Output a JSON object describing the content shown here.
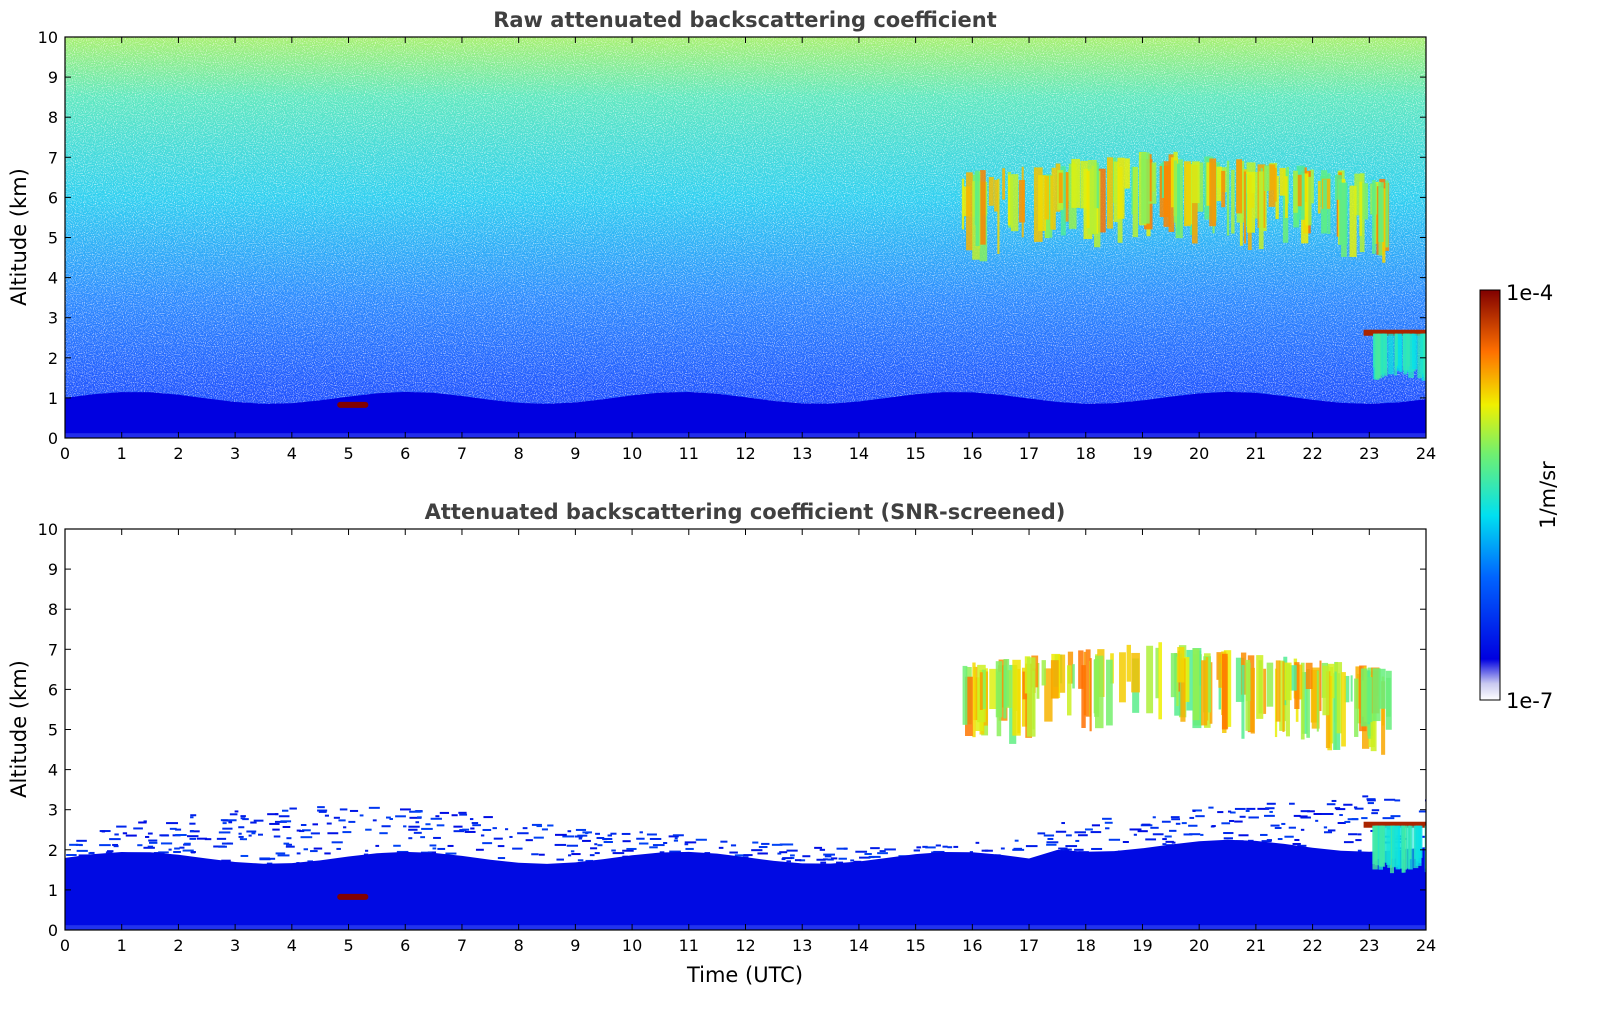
{
  "chart_data": [
    {
      "type": "heatmap",
      "title": "Raw attenuated backscattering coefficient",
      "xlabel": "",
      "ylabel": "Altitude (km)",
      "xlim": [
        0,
        24
      ],
      "ylim": [
        0,
        10
      ],
      "xticks": [
        "0",
        "1",
        "2",
        "3",
        "4",
        "5",
        "6",
        "7",
        "8",
        "9",
        "10",
        "11",
        "12",
        "13",
        "14",
        "15",
        "16",
        "17",
        "18",
        "19",
        "20",
        "21",
        "22",
        "23",
        "24"
      ],
      "yticks": [
        "0",
        "1",
        "2",
        "3",
        "4",
        "5",
        "6",
        "7",
        "8",
        "9",
        "10"
      ],
      "grid": false,
      "features": [
        {
          "kind": "boundary-layer",
          "x": [
            0,
            24
          ],
          "y": [
            0,
            1.0
          ],
          "level": 0.1
        },
        {
          "kind": "aerosol-layer",
          "x": [
            4.8,
            5.35
          ],
          "y": [
            0.75,
            0.9
          ],
          "level": 1.0
        },
        {
          "kind": "cirrus-cloud",
          "x": [
            15.8,
            23.3
          ],
          "y": [
            4.5,
            7.2
          ],
          "level": 0.7
        },
        {
          "kind": "cloud",
          "x": [
            22.9,
            24
          ],
          "y": [
            1.4,
            2.7
          ],
          "level": 0.95
        }
      ]
    },
    {
      "type": "heatmap",
      "title": "Attenuated backscattering coefficient (SNR-screened)",
      "xlabel": "Time (UTC)",
      "ylabel": "Altitude (km)",
      "xlim": [
        0,
        24
      ],
      "ylim": [
        0,
        10
      ],
      "xticks": [
        "0",
        "1",
        "2",
        "3",
        "4",
        "5",
        "6",
        "7",
        "8",
        "9",
        "10",
        "11",
        "12",
        "13",
        "14",
        "15",
        "16",
        "17",
        "18",
        "19",
        "20",
        "21",
        "22",
        "23",
        "24"
      ],
      "yticks": [
        "0",
        "1",
        "2",
        "3",
        "4",
        "5",
        "6",
        "7",
        "8",
        "9",
        "10"
      ],
      "grid": false,
      "features": [
        {
          "kind": "boundary-layer",
          "x": [
            0,
            24
          ],
          "y": [
            0,
            2.0
          ],
          "level": 0.12
        },
        {
          "kind": "aerosol-layer",
          "x": [
            4.8,
            5.35
          ],
          "y": [
            0.75,
            0.9
          ],
          "level": 1.0
        },
        {
          "kind": "cirrus-cloud",
          "x": [
            15.8,
            23.3
          ],
          "y": [
            4.5,
            7.2
          ],
          "level": 0.7
        },
        {
          "kind": "cloud",
          "x": [
            22.9,
            24
          ],
          "y": [
            1.4,
            2.7
          ],
          "level": 0.95
        }
      ]
    }
  ],
  "colorbar": {
    "label": "1/m/sr",
    "min_label": "1e-7",
    "max_label": "1e-4",
    "colormap": "jet",
    "scale": "log"
  }
}
